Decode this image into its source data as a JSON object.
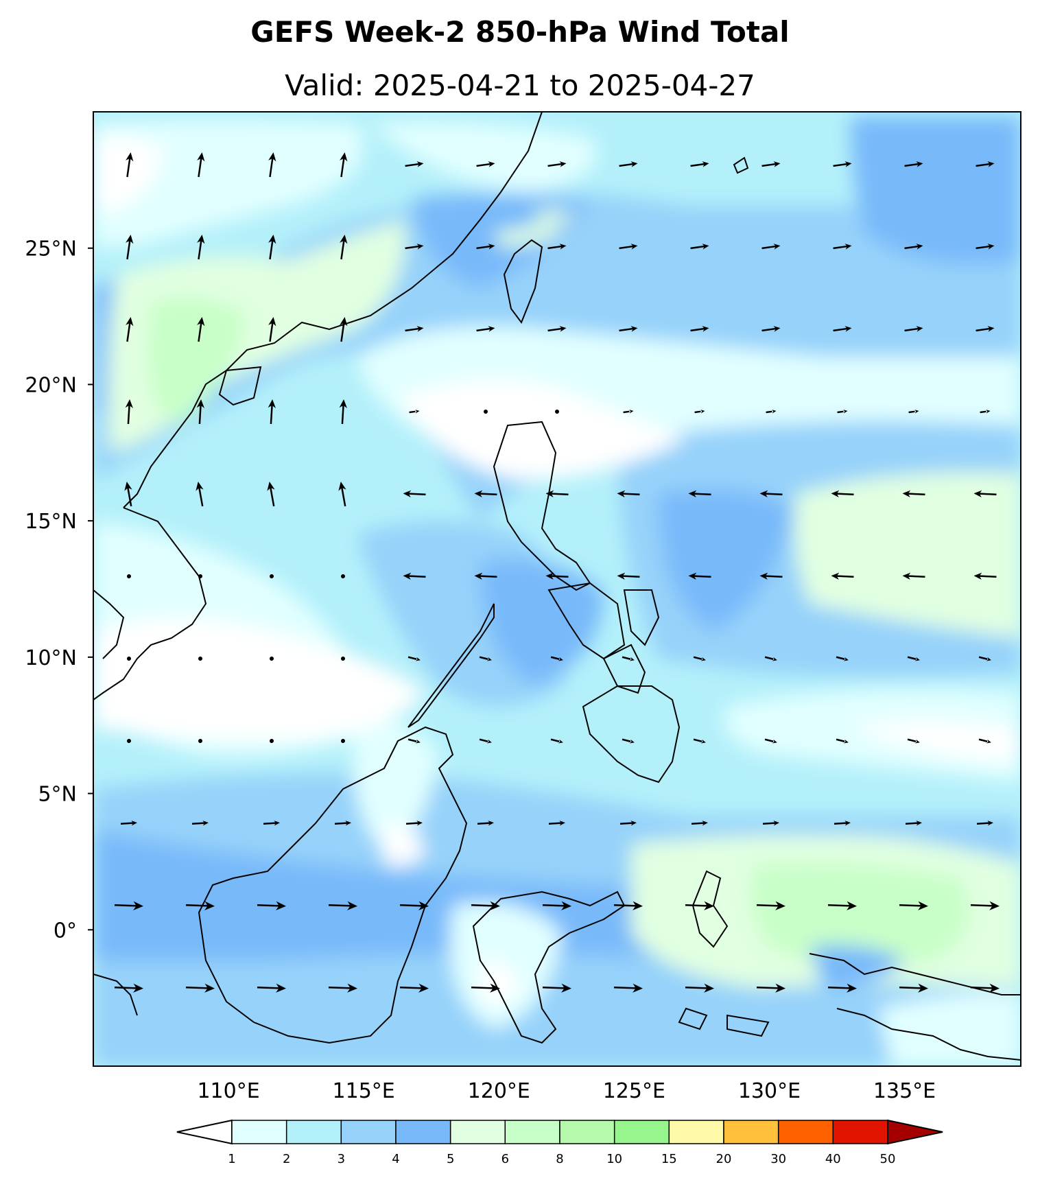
{
  "title": "GEFS Week-2 850-hPa Wind Total",
  "subtitle": "Valid: 2025-04-21 to 2025-04-27",
  "lat_labels": [
    {
      "deg": 25,
      "text": "25°N"
    },
    {
      "deg": 20,
      "text": "20°N"
    },
    {
      "deg": 15,
      "text": "15°N"
    },
    {
      "deg": 10,
      "text": "10°N"
    },
    {
      "deg": 5,
      "text": "5°N"
    },
    {
      "deg": 0,
      "text": "0°"
    }
  ],
  "lon_labels": [
    {
      "deg": 110,
      "text": "110°E"
    },
    {
      "deg": 115,
      "text": "115°E"
    },
    {
      "deg": 120,
      "text": "120°E"
    },
    {
      "deg": 125,
      "text": "125°E"
    },
    {
      "deg": 130,
      "text": "130°E"
    },
    {
      "deg": 135,
      "text": "135°E"
    }
  ],
  "extent": {
    "lon_min": 105.0,
    "lon_max": 139.3,
    "lat_min": -5.0,
    "lat_max": 30.0
  },
  "colorbar": {
    "levels": [
      "1",
      "2",
      "3",
      "4",
      "5",
      "6",
      "8",
      "10",
      "15",
      "20",
      "30",
      "40",
      "50"
    ],
    "colors": [
      "#e1ffff",
      "#b4f0fa",
      "#96d2fa",
      "#78b9fa",
      "#e1ffe1",
      "#c8ffc8",
      "#b4faaa",
      "#96f58c",
      "#fffaaa",
      "#ffc03c",
      "#ff6000",
      "#e11400",
      "#a50000"
    ],
    "under_color": "#ffffff",
    "over_color": "#a50000"
  },
  "legend_colors_used": {
    "very_light": "#e1ffff",
    "light": "#b4f0fa",
    "mid": "#96d2fa",
    "strong": "#78b9fa",
    "green_light": "#e1ffe1",
    "green": "#c8ffc8"
  }
}
